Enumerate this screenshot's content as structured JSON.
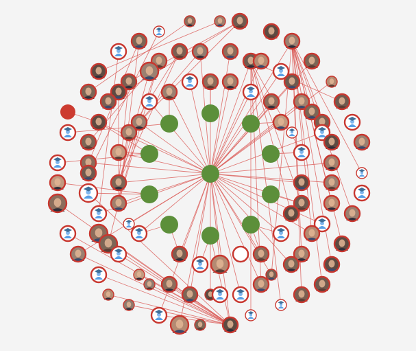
{
  "diagram": {
    "type": "network-graph",
    "hub_color": "#5c8f3a",
    "edge_color": "#d9534f",
    "ring_color": "#c8372f",
    "placeholder_color": "#6aa7e8",
    "icon_names": [
      "graduate-avatar-icon",
      "profile-photo"
    ]
  }
}
